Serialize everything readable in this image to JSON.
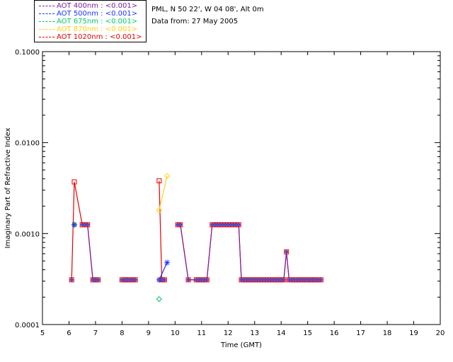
{
  "legend": [
    {
      "label": "AOT  400nm : <0.001>",
      "color": "#7b1fa2"
    },
    {
      "label": "AOT  500nm : <0.001>",
      "color": "#1a33ff"
    },
    {
      "label": "AOT  675nm : <0.001>",
      "color": "#00cc66"
    },
    {
      "label": "AOT  870nm : <0.001>",
      "color": "#ffd21a"
    },
    {
      "label": "AOT 1020nm : <0.001>",
      "color": "#e60000"
    }
  ],
  "info": {
    "site_line": "PML, N 50 22', W 04 08', Alt 0m",
    "date_line": "Data from: 27 May 2005"
  },
  "chart_data": {
    "type": "scatter",
    "xlabel": "Time (GMT)",
    "ylabel": "Imaginary Part of Refractive Index",
    "xlim": [
      5,
      20
    ],
    "ylim": [
      0.0001,
      0.1
    ],
    "yscale": "log",
    "x_ticks": [
      5,
      6,
      7,
      8,
      9,
      10,
      11,
      12,
      13,
      14,
      15,
      16,
      17,
      18,
      19,
      20
    ],
    "y_ticks": [
      {
        "value": 0.0001,
        "label": "0.0001"
      },
      {
        "value": 0.001,
        "label": "0.0010"
      },
      {
        "value": 0.01,
        "label": "0.0100"
      },
      {
        "value": 0.1,
        "label": "0.1000"
      }
    ],
    "series": [
      {
        "name": "AOT  400nm : <0.001>",
        "marker": "circle",
        "color": "#7b1fa2",
        "x": [
          6.1,
          6.5,
          6.6,
          6.7,
          6.9,
          7.0,
          7.1,
          8.0,
          8.1,
          8.2,
          8.3,
          8.4,
          8.5,
          9.4,
          9.5,
          9.6,
          10.1,
          10.2,
          10.5,
          10.8,
          10.9,
          11.0,
          11.1,
          11.2,
          11.4,
          11.5,
          11.6,
          11.7,
          11.8,
          11.9,
          12.0,
          12.1,
          12.2,
          12.3,
          12.4,
          12.5,
          12.6,
          12.7,
          12.8,
          12.9,
          13.0,
          13.1,
          13.2,
          13.3,
          13.4,
          13.5,
          13.6,
          13.7,
          13.8,
          13.9,
          14.0,
          14.1,
          14.2,
          14.3,
          14.4,
          14.5,
          14.6,
          14.7,
          14.8,
          14.9,
          15.0,
          15.1,
          15.2,
          15.3,
          15.4,
          15.5
        ],
        "y": [
          0.00031,
          0.00125,
          0.00125,
          0.00125,
          0.00031,
          0.00031,
          0.00031,
          0.00031,
          0.00031,
          0.00031,
          0.00031,
          0.00031,
          0.00031,
          0.00031,
          0.00031,
          0.00031,
          0.00125,
          0.00125,
          0.00031,
          0.00031,
          0.00031,
          0.00031,
          0.00031,
          0.00031,
          0.00125,
          0.00125,
          0.00125,
          0.00125,
          0.00125,
          0.00125,
          0.00125,
          0.00125,
          0.00125,
          0.00125,
          0.00125,
          0.00031,
          0.00031,
          0.00031,
          0.00031,
          0.00031,
          0.00031,
          0.00031,
          0.00031,
          0.00031,
          0.00031,
          0.00031,
          0.00031,
          0.00031,
          0.00031,
          0.00031,
          0.00031,
          0.00031,
          0.00063,
          0.00031,
          0.00031,
          0.00031,
          0.00031,
          0.00031,
          0.00031,
          0.00031,
          0.00031,
          0.00031,
          0.00031,
          0.00031,
          0.00031,
          0.00031
        ]
      },
      {
        "name": "AOT  500nm : <0.001>",
        "marker": "asterisk",
        "color": "#1a33ff",
        "x": [
          6.2,
          9.4,
          9.7
        ],
        "y": [
          0.00125,
          0.00031,
          0.00048
        ]
      },
      {
        "name": "AOT  675nm : <0.001>",
        "marker": "diamond",
        "color": "#00cc66",
        "x": [
          6.2,
          9.4
        ],
        "y": [
          0.00125,
          0.00019
        ]
      },
      {
        "name": "AOT  870nm : <0.001>",
        "marker": "diamond",
        "color": "#ffd21a",
        "x": [
          6.2,
          9.4,
          9.7
        ],
        "y": [
          0.00125,
          0.0018,
          0.0043
        ]
      },
      {
        "name": "AOT 1020nm : <0.001>",
        "marker": "square",
        "color": "#e60000",
        "x": [
          6.1,
          6.2,
          6.5,
          6.6,
          6.7,
          6.9,
          7.0,
          7.1,
          8.0,
          8.1,
          8.2,
          8.3,
          8.4,
          8.5,
          9.4,
          9.5,
          9.6,
          10.1,
          10.2,
          10.5,
          10.8,
          10.9,
          11.0,
          11.1,
          11.2,
          11.4,
          11.5,
          11.6,
          11.7,
          11.8,
          11.9,
          12.0,
          12.1,
          12.2,
          12.3,
          12.4,
          12.5,
          12.6,
          12.7,
          12.8,
          12.9,
          13.0,
          13.1,
          13.2,
          13.3,
          13.4,
          13.5,
          13.6,
          13.7,
          13.8,
          13.9,
          14.0,
          14.1,
          14.2,
          14.3,
          14.4,
          14.5,
          14.6,
          14.7,
          14.8,
          14.9,
          15.0,
          15.1,
          15.2,
          15.3,
          15.4,
          15.5
        ],
        "y": [
          0.00031,
          0.0037,
          0.00125,
          0.00125,
          0.00125,
          0.00031,
          0.00031,
          0.00031,
          0.00031,
          0.00031,
          0.00031,
          0.00031,
          0.00031,
          0.00031,
          0.0038,
          0.00031,
          0.00031,
          0.00125,
          0.00125,
          0.00031,
          0.00031,
          0.00031,
          0.00031,
          0.00031,
          0.00031,
          0.00125,
          0.00125,
          0.00125,
          0.00125,
          0.00125,
          0.00125,
          0.00125,
          0.00125,
          0.00125,
          0.00125,
          0.00125,
          0.00031,
          0.00031,
          0.00031,
          0.00031,
          0.00031,
          0.00031,
          0.00031,
          0.00031,
          0.00031,
          0.00031,
          0.00031,
          0.00031,
          0.00031,
          0.00031,
          0.00031,
          0.00031,
          0.00031,
          0.00063,
          0.00031,
          0.00031,
          0.00031,
          0.00031,
          0.00031,
          0.00031,
          0.00031,
          0.00031,
          0.00031,
          0.00031,
          0.00031,
          0.00031,
          0.00031
        ]
      }
    ]
  }
}
